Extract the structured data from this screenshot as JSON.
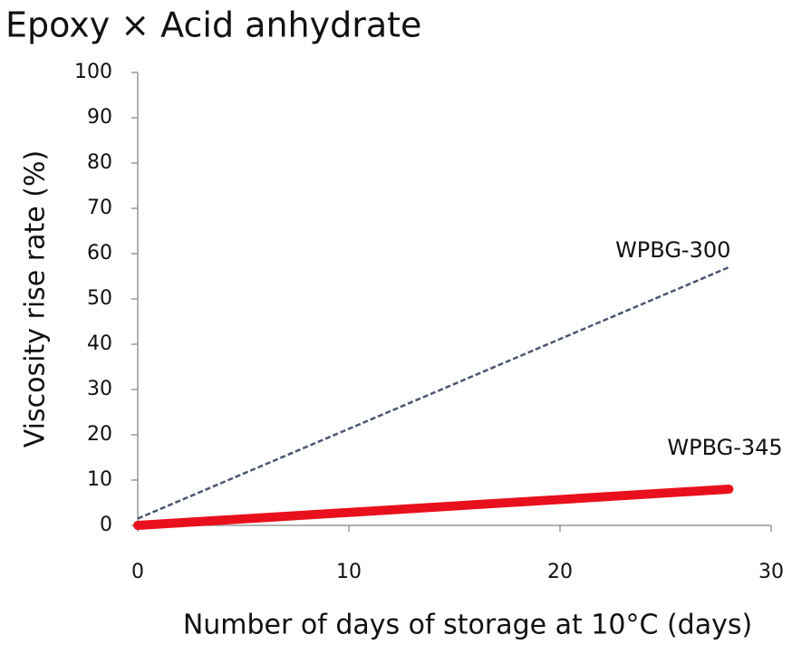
{
  "chart_data": {
    "type": "line",
    "title": "Epoxy × Acid anhydrate",
    "x_label": "Number of days of storage at 10°C (days)",
    "y_label": "Viscosity rise rate (%)",
    "x": [
      0,
      28
    ],
    "series": [
      {
        "name": "WPBG-300",
        "color": "#4a5670",
        "dashed": true,
        "values": [
          1.5,
          57
        ]
      },
      {
        "name": "WPBG-345",
        "color": "#e8101c",
        "dashed": false,
        "values": [
          0,
          8
        ]
      }
    ],
    "xlim": [
      0,
      30
    ],
    "xticks": [
      0,
      10,
      20,
      30
    ],
    "ylim": [
      0,
      100
    ],
    "yticks": [
      0,
      10,
      20,
      30,
      40,
      50,
      60,
      70,
      80,
      90,
      100
    ],
    "grid": false
  }
}
